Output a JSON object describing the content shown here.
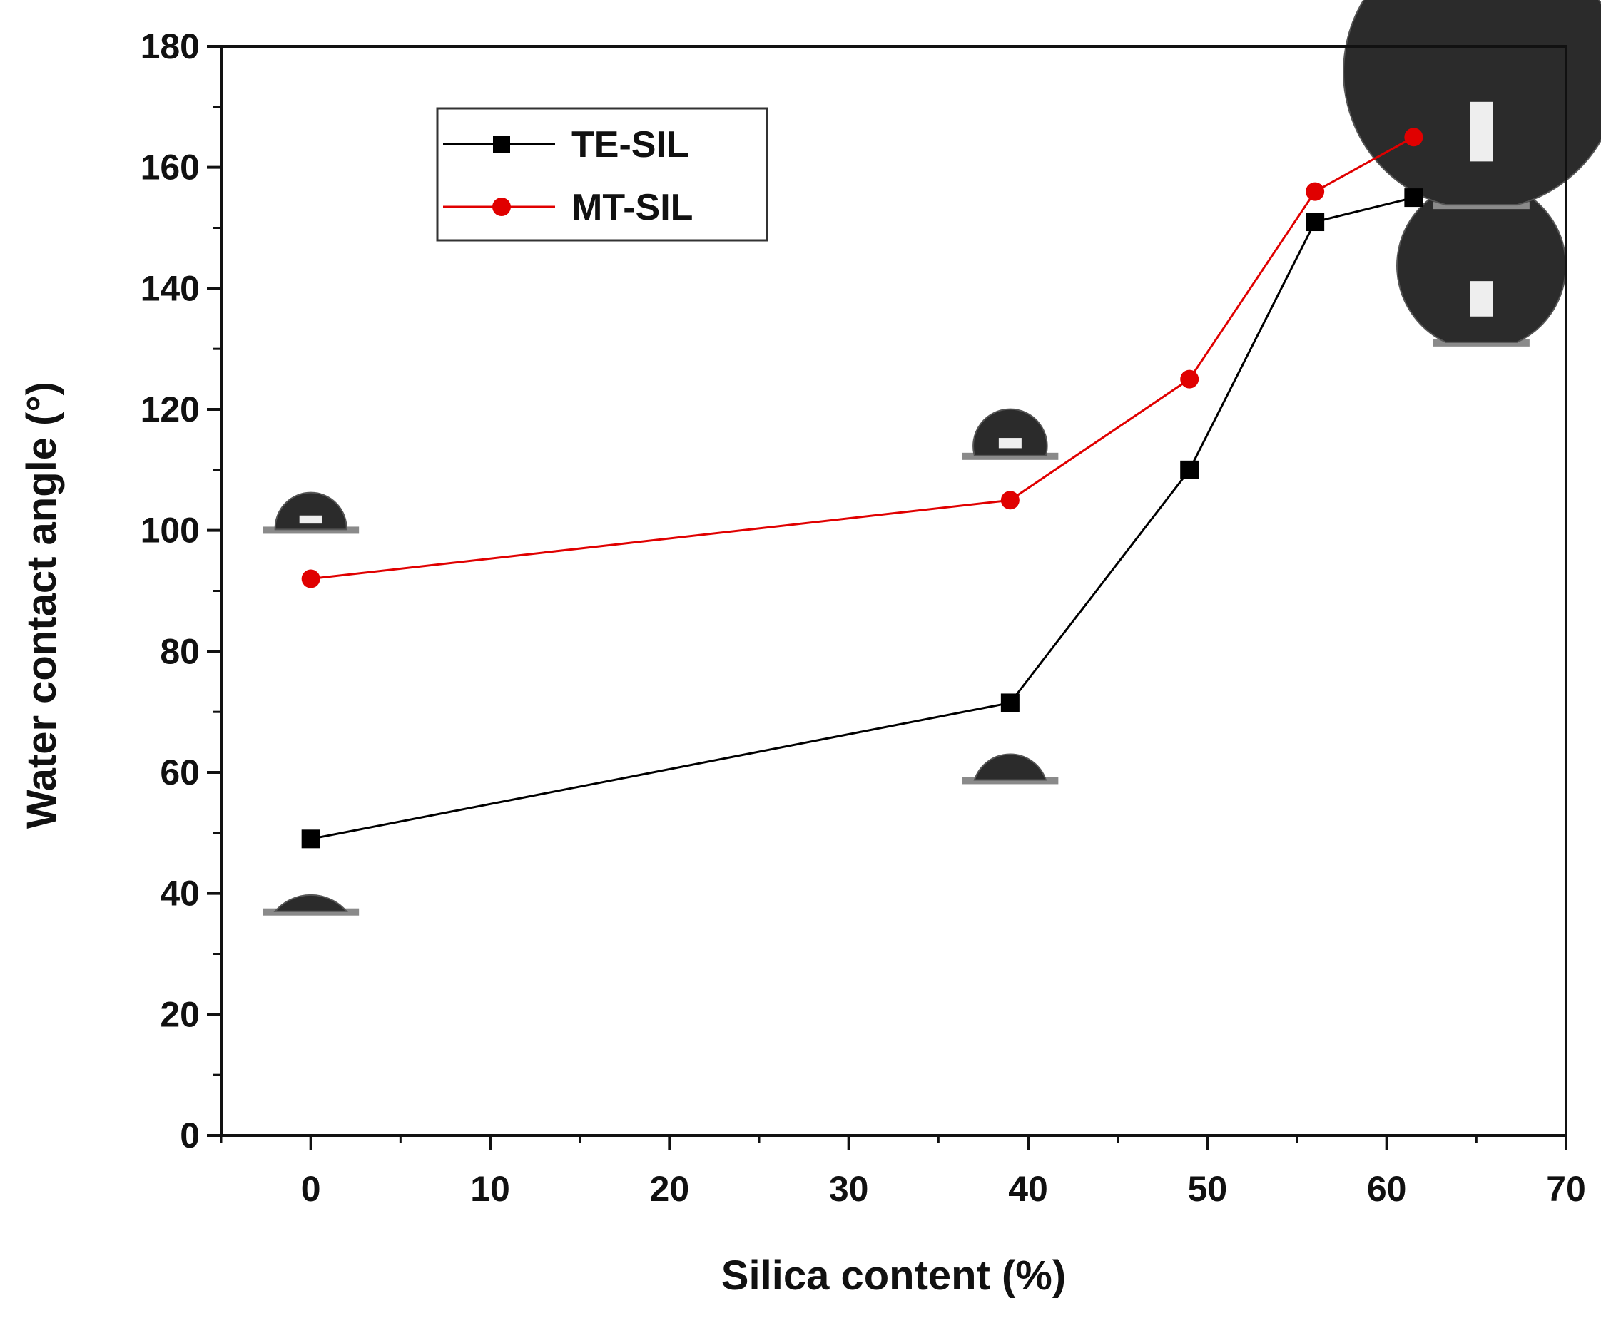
{
  "chart_data": {
    "type": "line",
    "xlabel": "Silica content (%)",
    "ylabel": "Water contact angle (°)",
    "xlim": [
      -5,
      70
    ],
    "ylim": [
      0,
      180
    ],
    "x_ticks": [
      0,
      10,
      20,
      30,
      40,
      50,
      60,
      70
    ],
    "y_ticks": [
      0,
      20,
      40,
      60,
      80,
      100,
      120,
      140,
      160,
      180
    ],
    "grid": false,
    "legend_position": "top-left",
    "series": [
      {
        "name": "TE-SIL",
        "color": "#000000",
        "marker": "square",
        "x": [
          0,
          39,
          49,
          56,
          61.5
        ],
        "y": [
          49,
          71.5,
          110,
          151,
          155
        ]
      },
      {
        "name": "MT-SIL",
        "color": "#e00000",
        "marker": "circle",
        "x": [
          0,
          39,
          49,
          56,
          61.5
        ],
        "y": [
          92,
          105,
          125,
          156,
          165
        ]
      }
    ],
    "droplet_images": [
      {
        "series": "TE-SIL",
        "x": 0,
        "angle": 49
      },
      {
        "series": "MT-SIL",
        "x": 0,
        "angle": 92
      },
      {
        "series": "TE-SIL",
        "x": 39,
        "angle": 71.5
      },
      {
        "series": "MT-SIL",
        "x": 39,
        "angle": 105
      },
      {
        "series": "TE-SIL",
        "x": 61.5,
        "angle": 155
      },
      {
        "series": "MT-SIL",
        "x": 61.5,
        "angle": 165
      }
    ]
  }
}
